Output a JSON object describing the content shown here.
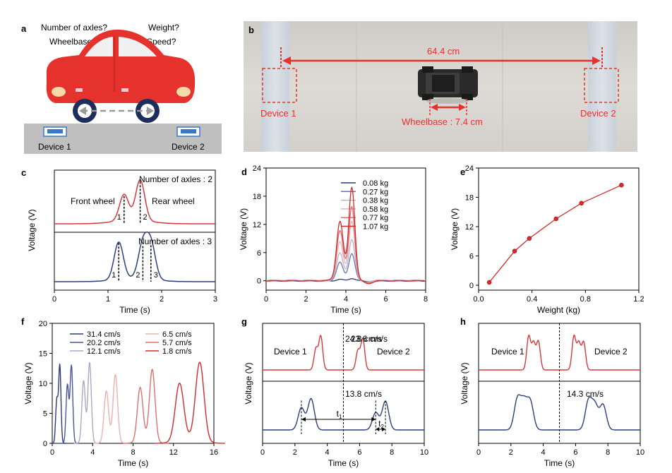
{
  "panel_letters": {
    "a": "a",
    "b": "b",
    "c": "c",
    "d": "d",
    "e": "e",
    "f": "f",
    "g": "g",
    "h": "h"
  },
  "panel_a": {
    "questions": [
      "Number of axles?",
      "Weight?",
      "Wheelbase?",
      "Speed?"
    ],
    "device1": "Device 1",
    "device2": "Device 2",
    "colors": {
      "car": "#e5322d",
      "road": "#bfbfbf",
      "wheel": "#1d2e5c",
      "device": "#3b78c4"
    }
  },
  "panel_b": {
    "distance_label": "64.4 cm",
    "wheelbase_label": "Wheelbase : 7.4 cm",
    "device1": "Device 1",
    "device2": "Device 2",
    "colors": {
      "annotation": "#e5322d"
    }
  },
  "chart_data": [
    {
      "panel": "c",
      "type": "line",
      "xlabel": "Time (s)",
      "ylabel": "Voltage (V)",
      "xlim": [
        0,
        3
      ],
      "xticks": [
        "0",
        "1",
        "2",
        "3"
      ],
      "series": [
        {
          "name": "Number of axles : 2",
          "color": "#d9383a",
          "peaks": [
            {
              "x": 1.3,
              "h": 0.6
            },
            {
              "x": 1.6,
              "h": 0.93
            }
          ],
          "axle_labels": [
            "1",
            "2"
          ]
        },
        {
          "name": "Number of axles : 3",
          "color": "#2f3f7e",
          "peaks": [
            {
              "x": 1.2,
              "h": 0.85
            },
            {
              "x": 1.65,
              "h": 0.78
            },
            {
              "x": 1.8,
              "h": 0.8
            }
          ],
          "axle_labels": [
            "1",
            "2",
            "3"
          ]
        }
      ],
      "annotations": [
        "Number of axles : 2",
        "Front wheel",
        "Rear wheel",
        "Number of axles : 3"
      ]
    },
    {
      "panel": "d",
      "type": "line",
      "xlabel": "Time (s)",
      "ylabel": "Voltage (V)",
      "xlim": [
        0,
        8
      ],
      "ylim": [
        -2,
        24
      ],
      "xticks": [
        "0",
        "2",
        "4",
        "6",
        "8"
      ],
      "yticks": [
        "0",
        "6",
        "12",
        "18",
        "24"
      ],
      "peak1_x": 3.7,
      "peak2_x": 4.3,
      "series": [
        {
          "name": "0.08 kg",
          "color": "#2d3a78",
          "peak1": 0.25,
          "peak2": 0.5
        },
        {
          "name": "0.27 kg",
          "color": "#6873b3",
          "peak1": 3.6,
          "peak2": 5.5
        },
        {
          "name": "0.38 kg",
          "color": "#b0b6d6",
          "peak1": 5.5,
          "peak2": 8.3
        },
        {
          "name": "0.58 kg",
          "color": "#eeb0b0",
          "peak1": 7.8,
          "peak2": 12
        },
        {
          "name": "0.77 kg",
          "color": "#de7070",
          "peak1": 10,
          "peak2": 15
        },
        {
          "name": "1.07 kg",
          "color": "#d42a2a",
          "peak1": 11.8,
          "peak2": 19
        }
      ]
    },
    {
      "panel": "e",
      "type": "scatter",
      "xlabel": "Weight (kg)",
      "ylabel": "Voltage (V)",
      "xlim": [
        0,
        1.2
      ],
      "ylim": [
        -1,
        24
      ],
      "xticks": [
        "0.0",
        "0.4",
        "0.8",
        "1.2"
      ],
      "yticks": [
        "0",
        "6",
        "12",
        "18",
        "24"
      ],
      "x": [
        0.08,
        0.27,
        0.38,
        0.58,
        0.77,
        1.07
      ],
      "y": [
        0.6,
        7.0,
        9.6,
        13.6,
        16.8,
        20.5
      ],
      "color": "#d42a2a"
    },
    {
      "panel": "f",
      "type": "line",
      "xlabel": "Time (s)",
      "ylabel": "Voltage (V)",
      "xlim": [
        0,
        16
      ],
      "ylim": [
        0,
        20
      ],
      "xticks": [
        "0",
        "4",
        "8",
        "12",
        "16"
      ],
      "yticks": [
        "0",
        "5",
        "10",
        "15",
        "20"
      ],
      "series": [
        {
          "name": "31.4 cm/s",
          "color": "#2d3a78",
          "center": 0.6,
          "sep": 0.3,
          "h1": 6.8,
          "h2": 12.5
        },
        {
          "name": "20.2 cm/s",
          "color": "#4a5598",
          "center": 1.7,
          "sep": 0.4,
          "h1": 9.3,
          "h2": 12.5
        },
        {
          "name": "12.1 cm/s",
          "color": "#a9a9c6",
          "center": 3.4,
          "sep": 0.6,
          "h1": 10.0,
          "h2": 13.0
        },
        {
          "name": "6.5 cm/s",
          "color": "#eeb0b0",
          "center": 5.8,
          "sep": 0.9,
          "h1": 8.3,
          "h2": 11.0
        },
        {
          "name": "5.7 cm/s",
          "color": "#de7070",
          "center": 9.3,
          "sep": 1.2,
          "h1": 8.9,
          "h2": 11.9
        },
        {
          "name": "1.8 cm/s",
          "color": "#d42a2a",
          "center": 13.6,
          "sep": 2.0,
          "h1": 9.6,
          "h2": 13.1
        }
      ]
    },
    {
      "panel": "g",
      "type": "line",
      "xlabel": "Time (s)",
      "ylabel": "Voltage (V)",
      "xlim": [
        0,
        10
      ],
      "xticks": [
        "0",
        "2",
        "4",
        "6",
        "8",
        "10"
      ],
      "divider_x": 5,
      "labels": {
        "device1": "Device 1",
        "device2": "Device 2",
        "t1": "t",
        "t1_sub": "1",
        "t2": "t",
        "t2_sub": "2"
      },
      "series": [
        {
          "name": "24.8 cm/s",
          "color": "#d9383a",
          "peaks": [
            {
              "x": 3.3,
              "h": 0.6
            },
            {
              "x": 3.6,
              "h": 0.95
            },
            {
              "x": 5.9,
              "h": 0.55
            },
            {
              "x": 6.2,
              "h": 0.88
            }
          ]
        },
        {
          "name": "13.8 cm/s",
          "color": "#2f3f7e",
          "peaks": [
            {
              "x": 2.4,
              "h": 0.6
            },
            {
              "x": 3.0,
              "h": 0.85
            },
            {
              "x": 7.0,
              "h": 0.47
            },
            {
              "x": 7.6,
              "h": 0.78
            }
          ]
        }
      ]
    },
    {
      "panel": "h",
      "type": "line",
      "xlabel": "Time (s)",
      "ylabel": "Voltage (V)",
      "xlim": [
        0,
        10
      ],
      "xticks": [
        "0",
        "2",
        "4",
        "6",
        "8",
        "10"
      ],
      "divider_x": 5,
      "labels": {
        "device1": "Device 1",
        "device2": "Device 2"
      },
      "series": [
        {
          "name": "23.6 cm/s",
          "color": "#d9383a",
          "peaks": [
            {
              "x": 3.1,
              "h": 0.95
            },
            {
              "x": 3.4,
              "h": 0.75
            },
            {
              "x": 3.7,
              "h": 0.8
            },
            {
              "x": 5.9,
              "h": 0.95
            },
            {
              "x": 6.2,
              "h": 0.75
            },
            {
              "x": 6.5,
              "h": 0.78
            }
          ]
        },
        {
          "name": "14.3 cm/s",
          "color": "#2f3f7e",
          "peaks": [
            {
              "x": 2.4,
              "h": 0.82
            },
            {
              "x": 2.8,
              "h": 0.72
            },
            {
              "x": 3.2,
              "h": 0.75
            },
            {
              "x": 6.8,
              "h": 0.78
            },
            {
              "x": 7.2,
              "h": 0.65
            },
            {
              "x": 7.7,
              "h": 0.68
            }
          ]
        }
      ]
    }
  ]
}
